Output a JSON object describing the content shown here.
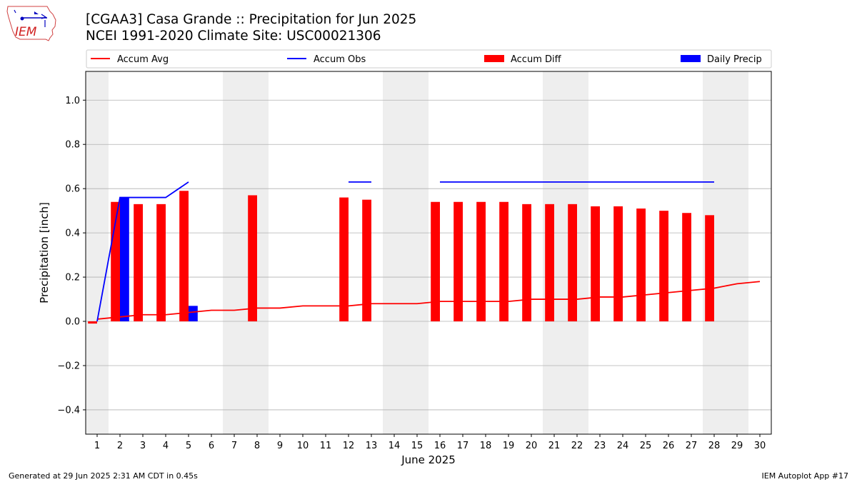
{
  "header": {
    "title_line1": "[CGAA3] Casa Grande :: Precipitation for Jun 2025",
    "title_line2": "NCEI 1991-2020 Climate Site: USC00021306",
    "logo_text": "IEM"
  },
  "footer": {
    "generated": "Generated at 29 Jun 2025 2:31 AM CDT in 0.45s",
    "app": "IEM Autoplot App #17"
  },
  "colors": {
    "avg": "#ff0000",
    "obs": "#0000ff",
    "diff": "#ff0000",
    "daily": "#0000ff",
    "weekend": "#eeeeee",
    "grid": "#b0b0b0"
  },
  "chart_data": {
    "type": "bar",
    "xlabel": "June 2025",
    "ylabel": "Precipitation [inch]",
    "xlim": [
      0.5,
      30.5
    ],
    "ylim": [
      -0.51,
      1.13
    ],
    "yticks": [
      -0.4,
      -0.2,
      0.0,
      0.2,
      0.4,
      0.6,
      0.8,
      1.0
    ],
    "ytick_labels": [
      "−0.4",
      "−0.2",
      "0.0",
      "0.2",
      "0.4",
      "0.6",
      "0.8",
      "1.0"
    ],
    "days": [
      1,
      2,
      3,
      4,
      5,
      6,
      7,
      8,
      9,
      10,
      11,
      12,
      13,
      14,
      15,
      16,
      17,
      18,
      19,
      20,
      21,
      22,
      23,
      24,
      25,
      26,
      27,
      28,
      29,
      30
    ],
    "weekend_spans": [
      [
        0.5,
        1.5
      ],
      [
        6.5,
        8.5
      ],
      [
        13.5,
        15.5
      ],
      [
        20.5,
        22.5
      ],
      [
        27.5,
        29.5
      ]
    ],
    "grid": true,
    "legend": {
      "placement": "top",
      "entries": [
        {
          "label": "Accum Avg",
          "kind": "line",
          "color": "#ff0000"
        },
        {
          "label": "Accum Obs",
          "kind": "line",
          "color": "#0000ff"
        },
        {
          "label": "Accum Diff",
          "kind": "bar",
          "color": "#ff0000"
        },
        {
          "label": "Daily Precip",
          "kind": "bar",
          "color": "#0000ff"
        }
      ]
    },
    "series": [
      {
        "name": "Accum Avg",
        "kind": "line",
        "values": [
          0.01,
          0.02,
          0.03,
          0.03,
          0.04,
          0.05,
          0.05,
          0.06,
          0.06,
          0.07,
          0.07,
          0.07,
          0.08,
          0.08,
          0.08,
          0.09,
          0.09,
          0.09,
          0.09,
          0.1,
          0.1,
          0.1,
          0.11,
          0.11,
          0.12,
          0.13,
          0.14,
          0.15,
          0.17,
          0.18
        ]
      },
      {
        "name": "Accum Obs",
        "kind": "line",
        "values": [
          0.0,
          0.56,
          0.56,
          0.56,
          0.63,
          null,
          null,
          null,
          null,
          null,
          null,
          0.63,
          0.63,
          null,
          null,
          0.63,
          0.63,
          0.63,
          0.63,
          0.63,
          0.63,
          0.63,
          0.63,
          0.63,
          0.63,
          0.63,
          0.63,
          0.63,
          null,
          null
        ]
      },
      {
        "name": "Accum Diff",
        "kind": "bar",
        "values": [
          -0.01,
          0.54,
          0.53,
          0.53,
          0.59,
          null,
          null,
          0.57,
          null,
          null,
          null,
          0.56,
          0.55,
          null,
          null,
          0.54,
          0.54,
          0.54,
          0.54,
          0.53,
          0.53,
          0.53,
          0.52,
          0.52,
          0.51,
          0.5,
          0.49,
          0.48,
          null,
          null
        ]
      },
      {
        "name": "Daily Precip",
        "kind": "bar",
        "values": [
          0,
          0.56,
          0,
          0,
          0.07,
          0,
          0,
          0,
          0,
          0,
          0,
          0,
          0,
          0,
          0,
          0,
          0,
          0,
          0,
          0,
          0,
          0,
          0,
          0,
          0,
          0,
          0,
          0,
          null,
          null
        ]
      }
    ]
  }
}
